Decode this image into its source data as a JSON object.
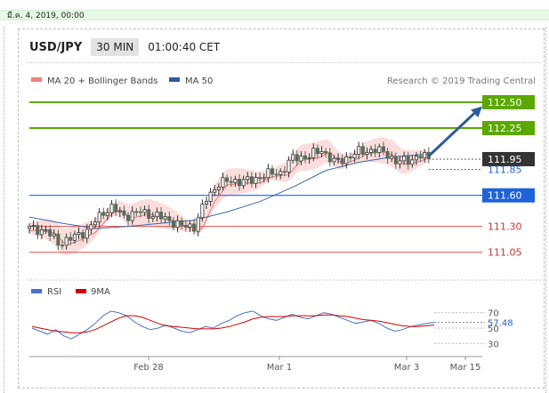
{
  "date_bar": "มี.ค. 4, 2019, 00:00",
  "header": {
    "pair": "USD/JPY",
    "timeframe": "30 MIN",
    "time": "01:00:40 CET"
  },
  "legend": {
    "ma20": "MA 20 + Bollinger Bands",
    "ma50": "MA 50",
    "credit": "Research © 2019 Trading Central",
    "rsi": "RSI",
    "ma9": "9MA"
  },
  "colors": {
    "resistance": "#5aa800",
    "current": "#333333",
    "pivot": "#1e64d8",
    "support": "#e05050",
    "arrow": "#2e5b9a",
    "candle_up": "#333333",
    "candle_down": "#5a6a5a",
    "bollinger": "#f9d8d8",
    "ma20": "#e87878",
    "ma50": "#3a6ab0",
    "rsi": "#4a72c8",
    "rsi_ma": "#d40000"
  },
  "chart_data": [
    {
      "type": "candlestick",
      "title": "USD/JPY",
      "ylim": [
        110.85,
        112.62
      ],
      "x_ticks": [
        "Feb 28",
        "Mar 1",
        "Mar 3",
        "Mar 15"
      ],
      "levels": [
        {
          "value": 112.5,
          "label": "112.50",
          "kind": "resistance",
          "style": "boxed"
        },
        {
          "value": 112.25,
          "label": "112.25",
          "kind": "resistance",
          "style": "boxed"
        },
        {
          "value": 111.95,
          "label": "111.95",
          "kind": "current",
          "style": "boxed"
        },
        {
          "value": 111.85,
          "label": "111.85",
          "kind": "current",
          "style": "text"
        },
        {
          "value": 111.6,
          "label": "111.60",
          "kind": "pivot",
          "style": "boxed"
        },
        {
          "value": 111.3,
          "label": "111.30",
          "kind": "support",
          "style": "text"
        },
        {
          "value": 111.05,
          "label": "111.05",
          "kind": "support",
          "style": "text"
        }
      ],
      "close_path": [
        [
          0,
          111.28
        ],
        [
          4,
          111.26
        ],
        [
          7,
          111.14
        ],
        [
          10,
          111.18
        ],
        [
          14,
          111.26
        ],
        [
          18,
          111.44
        ],
        [
          20,
          111.48
        ],
        [
          23,
          111.4
        ],
        [
          27,
          111.44
        ],
        [
          31,
          111.4
        ],
        [
          34,
          111.36
        ],
        [
          37,
          111.3
        ],
        [
          40,
          111.3
        ],
        [
          43,
          111.56
        ],
        [
          46,
          111.72
        ],
        [
          50,
          111.74
        ],
        [
          54,
          111.74
        ],
        [
          57,
          111.8
        ],
        [
          61,
          111.82
        ],
        [
          64,
          111.96
        ],
        [
          68,
          111.98
        ],
        [
          71,
          112.04
        ],
        [
          74,
          111.92
        ],
        [
          77,
          111.96
        ],
        [
          80,
          112.02
        ],
        [
          84,
          112.04
        ],
        [
          87,
          112.0
        ],
        [
          89,
          111.92
        ],
        [
          92,
          111.94
        ],
        [
          95,
          111.98
        ],
        [
          97,
          111.96
        ]
      ],
      "ma50_path": [
        [
          0,
          111.39
        ],
        [
          8,
          111.33
        ],
        [
          16,
          111.28
        ],
        [
          24,
          111.3
        ],
        [
          32,
          111.33
        ],
        [
          40,
          111.36
        ],
        [
          48,
          111.44
        ],
        [
          56,
          111.54
        ],
        [
          64,
          111.68
        ],
        [
          72,
          111.84
        ],
        [
          80,
          111.92
        ],
        [
          88,
          111.97
        ],
        [
          97,
          112.0
        ]
      ],
      "arrow": {
        "from": [
          97,
          111.98
        ],
        "to": [
          110,
          112.46
        ]
      }
    },
    {
      "type": "line",
      "title": "RSI",
      "ylim": [
        20,
        80
      ],
      "y_ticks": [
        70,
        50,
        30
      ],
      "current_value": 57.48,
      "series": [
        {
          "name": "RSI",
          "values": [
            50,
            46,
            42,
            48,
            40,
            36,
            42,
            48,
            56,
            66,
            72,
            70,
            66,
            58,
            52,
            48,
            50,
            54,
            50,
            46,
            44,
            48,
            52,
            50,
            56,
            60,
            66,
            70,
            72,
            66,
            62,
            60,
            64,
            68,
            64,
            62,
            66,
            70,
            68,
            64,
            60,
            56,
            58,
            60,
            56,
            50,
            46,
            48,
            52,
            54,
            56,
            57.48
          ]
        },
        {
          "name": "9MA",
          "values": [
            52,
            50,
            48,
            46,
            45,
            44,
            44,
            45,
            48,
            53,
            58,
            63,
            66,
            66,
            64,
            60,
            56,
            53,
            52,
            51,
            50,
            49,
            49,
            49,
            50,
            52,
            55,
            58,
            62,
            64,
            65,
            65,
            65,
            66,
            66,
            66,
            66,
            67,
            67,
            66,
            65,
            63,
            61,
            60,
            59,
            57,
            55,
            53,
            52,
            52,
            53,
            54
          ]
        }
      ]
    }
  ]
}
